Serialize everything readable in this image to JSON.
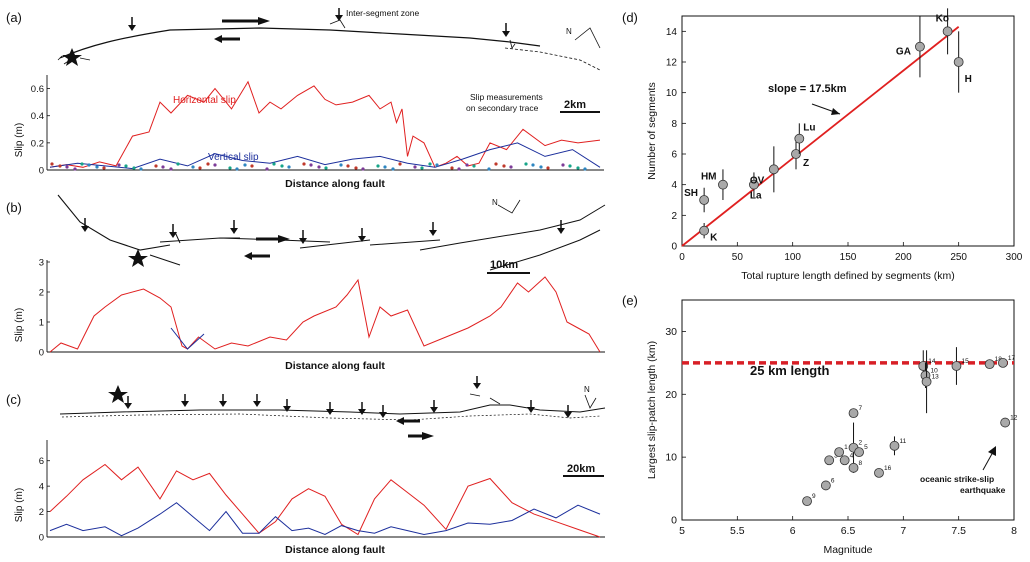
{
  "panel_labels": {
    "a": "(a)",
    "b": "(b)",
    "c": "(c)",
    "d": "(d)",
    "e": "(e)"
  },
  "colors": {
    "horizontal": "#e02020",
    "vertical": "#1c2f9c",
    "fit": "#e02020",
    "dashed25": "#d81f26",
    "marker": "#a9a9a9",
    "trace": "#111111"
  },
  "panel_a": {
    "inter_segment_label": "Inter-segment zone",
    "scale_label": "2km",
    "north": "N",
    "ylabel": "Slip (m)",
    "xlabel": "Distance along fault",
    "horizontal_label": "Horizontal slip",
    "vertical_label": "Vertical slip",
    "secondary_label_1": "Slip measurements",
    "secondary_label_2": "on secondary trace",
    "yticks": [
      "0",
      "0.2",
      "0.4",
      "0.6"
    ]
  },
  "panel_b": {
    "scale_label": "10km",
    "north": "N",
    "ylabel": "Slip (m)",
    "xlabel": "Distance along fault",
    "yticks": [
      "0",
      "1",
      "2",
      "3"
    ]
  },
  "panel_c": {
    "scale_label": "20km",
    "north": "N",
    "ylabel": "Slip (m)",
    "xlabel": "Distance along fault",
    "yticks": [
      "0",
      "2",
      "4",
      "6"
    ]
  },
  "chart_data": [
    {
      "panel": "d",
      "type": "scatter",
      "xlabel": "Total rupture length defined by segments (km)",
      "ylabel": "Number of segments",
      "xlim": [
        0,
        300
      ],
      "ylim": [
        0,
        15
      ],
      "xticks": [
        "0",
        "50",
        "100",
        "150",
        "200",
        "250",
        "300"
      ],
      "yticks": [
        "0",
        "2",
        "4",
        "6",
        "8",
        "10",
        "12",
        "14"
      ],
      "fit_label": "slope = 17.5km",
      "fit_line": {
        "x": [
          0,
          250
        ],
        "y": [
          0,
          14.3
        ]
      },
      "points": [
        {
          "label": "K",
          "x": 20,
          "y": 1,
          "err": 0.5
        },
        {
          "label": "SH",
          "x": 20,
          "y": 3,
          "err": 0.8
        },
        {
          "label": "HM",
          "x": 37,
          "y": 4,
          "err": 1
        },
        {
          "label": "La",
          "x": 65,
          "y": 4,
          "err": 0.8
        },
        {
          "label": "OV",
          "x": 83,
          "y": 5,
          "err": 1.5
        },
        {
          "label": "Z",
          "x": 103,
          "y": 6,
          "err": 1
        },
        {
          "label": "Lu",
          "x": 106,
          "y": 7,
          "err": 1
        },
        {
          "label": "GA",
          "x": 215,
          "y": 13,
          "err": 2
        },
        {
          "label": "Ko",
          "x": 240,
          "y": 14,
          "err": 1.5
        },
        {
          "label": "H",
          "x": 250,
          "y": 12,
          "err": 2
        }
      ]
    },
    {
      "panel": "e",
      "type": "scatter",
      "xlabel": "Magnitude",
      "ylabel": "Largest slip-patch length (km)",
      "xlim": [
        5,
        8
      ],
      "ylim": [
        0,
        35
      ],
      "xticks": [
        "5",
        "5.5",
        "6",
        "6.5",
        "7",
        "7.5",
        "8"
      ],
      "yticks": [
        "0",
        "10",
        "20",
        "30"
      ],
      "reference_line": {
        "y": 25,
        "label": "25 km length"
      },
      "annotation_1": "oceanic strike-slip",
      "annotation_2": "earthquake",
      "points": [
        {
          "label": "9",
          "x": 6.13,
          "y": 3,
          "err": 0
        },
        {
          "label": "6",
          "x": 6.3,
          "y": 5.5,
          "err": 0
        },
        {
          "label": "3",
          "x": 6.33,
          "y": 9.5,
          "err": 0
        },
        {
          "label": "1",
          "x": 6.42,
          "y": 10.8,
          "err": 0
        },
        {
          "label": "4",
          "x": 6.47,
          "y": 9.5,
          "err": 0
        },
        {
          "label": "2",
          "x": 6.55,
          "y": 11.5,
          "err": 4
        },
        {
          "label": "5",
          "x": 6.6,
          "y": 10.8,
          "err": 0
        },
        {
          "label": "8",
          "x": 6.55,
          "y": 8.3,
          "err": 0
        },
        {
          "label": "7",
          "x": 6.55,
          "y": 17,
          "err": 0
        },
        {
          "label": "16",
          "x": 6.78,
          "y": 7.5,
          "err": 0
        },
        {
          "label": "11",
          "x": 6.92,
          "y": 11.8,
          "err": 1.5
        },
        {
          "label": "14",
          "x": 7.18,
          "y": 24.5,
          "err": 2.5
        },
        {
          "label": "10",
          "x": 7.2,
          "y": 23,
          "err": 2
        },
        {
          "label": "13",
          "x": 7.21,
          "y": 22,
          "err": 5
        },
        {
          "label": "15",
          "x": 7.48,
          "y": 24.5,
          "err": 3
        },
        {
          "label": "18",
          "x": 7.78,
          "y": 24.8,
          "err": 0
        },
        {
          "label": "17",
          "x": 7.9,
          "y": 25,
          "err": 0
        },
        {
          "label": "12",
          "x": 7.92,
          "y": 15.5,
          "err": 0
        }
      ]
    },
    {
      "panel": "a",
      "type": "line",
      "ylim": [
        0,
        0.7
      ],
      "series": [
        {
          "name": "Horizontal slip",
          "x": [
            0,
            0.03,
            0.06,
            0.09,
            0.12,
            0.15,
            0.18,
            0.2,
            0.22,
            0.25,
            0.28,
            0.3,
            0.33,
            0.36,
            0.38,
            0.4,
            0.42,
            0.45,
            0.48,
            0.5,
            0.52,
            0.55,
            0.58,
            0.6,
            0.62,
            0.63,
            0.64,
            0.65,
            0.66,
            0.68,
            0.7,
            0.72,
            0.74,
            0.76,
            0.78,
            0.8,
            0.83,
            0.86,
            0.9,
            0.93,
            0.96,
            1.0
          ],
          "y": [
            0.02,
            0.04,
            0.02,
            0.06,
            0.03,
            0.25,
            0.28,
            0.5,
            0.42,
            0.55,
            0.5,
            0.6,
            0.45,
            0.65,
            0.42,
            0.5,
            0.45,
            0.55,
            0.62,
            0.52,
            0.48,
            0.5,
            0.55,
            0.45,
            0.5,
            0.35,
            0.45,
            0.1,
            0.25,
            0.2,
            0.02,
            0.05,
            0.1,
            0.03,
            0.05,
            0.2,
            0.15,
            0.3,
            0.18,
            0.22,
            0.2,
            0.22
          ]
        },
        {
          "name": "Vertical slip",
          "x": [
            0,
            0.05,
            0.1,
            0.15,
            0.2,
            0.25,
            0.3,
            0.35,
            0.4,
            0.45,
            0.5,
            0.55,
            0.6,
            0.65,
            0.7,
            0.75,
            0.8,
            0.85,
            0.9,
            0.95,
            1.0
          ],
          "y": [
            0.02,
            0.05,
            0.03,
            0.01,
            0.08,
            0.03,
            0.12,
            0.07,
            0.05,
            0.1,
            0.04,
            0.08,
            0.1,
            0.05,
            0.02,
            0.08,
            0.15,
            0.2,
            0.1,
            0.15,
            0.02
          ]
        }
      ]
    },
    {
      "panel": "b",
      "type": "line",
      "ylim": [
        0,
        3
      ],
      "series": [
        {
          "name": "",
          "x": [
            0,
            0.02,
            0.05,
            0.08,
            0.1,
            0.13,
            0.17,
            0.2,
            0.22,
            0.24,
            0.25,
            0.27,
            0.3,
            0.33,
            0.36,
            0.4,
            0.43,
            0.46,
            0.48,
            0.52,
            0.54,
            0.56,
            0.58,
            0.6,
            0.62,
            0.65,
            0.68,
            0.72,
            0.76,
            0.8,
            0.82,
            0.85,
            0.87,
            0.9,
            0.92,
            0.94,
            0.96,
            0.98,
            1.0
          ],
          "y": [
            0,
            0.3,
            0.1,
            1.2,
            1.5,
            1.9,
            2.1,
            1.8,
            1.5,
            0.2,
            0.1,
            0.5,
            0.1,
            0.3,
            0.2,
            0.5,
            0.4,
            1.0,
            1.2,
            1.5,
            1.9,
            2.4,
            0.5,
            1.5,
            1.2,
            1.4,
            0.2,
            0.5,
            0.8,
            1.2,
            1.5,
            2.3,
            2.0,
            2.5,
            2.0,
            1.0,
            0.8,
            0.6,
            0
          ]
        },
        {
          "name": "",
          "x": [
            0.22,
            0.25,
            0.28
          ],
          "y": [
            0.8,
            0.1,
            0.6
          ],
          "vertical": true
        }
      ]
    },
    {
      "panel": "c",
      "type": "line",
      "ylim": [
        0,
        7
      ],
      "series": [
        {
          "name": "",
          "x": [
            0,
            0.03,
            0.06,
            0.1,
            0.13,
            0.16,
            0.2,
            0.23,
            0.26,
            0.29,
            0.32,
            0.35,
            0.38,
            0.41,
            0.44,
            0.47,
            0.5,
            0.53,
            0.56,
            0.59,
            0.62,
            0.65,
            0.68,
            0.72,
            0.76,
            0.8,
            0.84,
            0.88,
            0.92,
            0.96,
            1.0
          ],
          "y": [
            2,
            3.2,
            4.5,
            5.7,
            4.5,
            5.5,
            3,
            5.2,
            4.5,
            5.0,
            3.3,
            1.8,
            0.3,
            1.2,
            3,
            3.8,
            3.2,
            1.0,
            0.2,
            3.0,
            4.5,
            3.5,
            2.5,
            0.6,
            4,
            4.6,
            2.7,
            1.8,
            1.2,
            0.6,
            0
          ]
        },
        {
          "name": "",
          "x": [
            0,
            0.03,
            0.06,
            0.1,
            0.13,
            0.16,
            0.2,
            0.23,
            0.26,
            0.29,
            0.32,
            0.35,
            0.38,
            0.41,
            0.44,
            0.47,
            0.5,
            0.53,
            0.56,
            0.59,
            0.62,
            0.65,
            0.68,
            0.72,
            0.76,
            0.8,
            0.84,
            0.88,
            0.92,
            0.96,
            1.0
          ],
          "y": [
            0.5,
            1,
            0.5,
            0.8,
            0.1,
            0.7,
            1.8,
            2.7,
            1.6,
            0.5,
            2.0,
            0.3,
            0.3,
            1.6,
            0.5,
            0.7,
            0.2,
            0.9,
            0.5,
            0.3,
            0.8,
            0.5,
            0.2,
            0.5,
            1.1,
            1.0,
            1.3,
            2.2,
            1.5,
            2.5,
            1.8
          ]
        }
      ]
    }
  ]
}
